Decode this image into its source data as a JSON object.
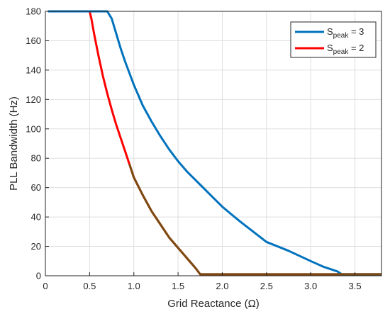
{
  "chart_data": {
    "type": "line",
    "title": "",
    "xlabel": "Grid Reactance (Ω)",
    "ylabel": "PLL Bandwidth (Hz)",
    "xlim": [
      0,
      3.8
    ],
    "ylim": [
      0,
      180
    ],
    "xticks": [
      0,
      0.5,
      1,
      1.5,
      2,
      2.5,
      3,
      3.5
    ],
    "xtick_labels": [
      "0",
      "0.5",
      "1.0",
      "1.5",
      "2.0",
      "2.5",
      "3.0",
      "3.5"
    ],
    "yticks": [
      0,
      20,
      40,
      60,
      80,
      100,
      120,
      140,
      160,
      180
    ],
    "ytick_labels": [
      "0",
      "20",
      "40",
      "60",
      "80",
      "100",
      "120",
      "140",
      "160",
      "180"
    ],
    "grid": true,
    "legend_position": "top-right",
    "series": [
      {
        "name": "S",
        "subscript": "peak",
        "suffix": " = 3",
        "color": "#0072bd",
        "x": [
          0.03,
          0.7,
          0.75,
          0.8,
          0.85,
          0.9,
          0.95,
          1.0,
          1.05,
          1.1,
          1.2,
          1.3,
          1.4,
          1.5,
          1.6,
          1.75,
          1.9,
          2.0,
          2.1,
          2.2,
          2.35,
          2.5,
          2.75,
          3.0,
          3.15,
          3.3,
          3.35,
          3.4,
          3.8
        ],
        "values": [
          180,
          180,
          175,
          165,
          155,
          146,
          138,
          130,
          123,
          116,
          105,
          95,
          86,
          78,
          71,
          62,
          53,
          47,
          42,
          37,
          30,
          23,
          17,
          10,
          6,
          3,
          1,
          1,
          1
        ]
      },
      {
        "name": "S",
        "subscript": "peak",
        "suffix": " = 2",
        "color": "#ff0000",
        "x": [
          0.03,
          0.5,
          0.52,
          0.55,
          0.6,
          0.65,
          0.7,
          0.75,
          0.8,
          0.85,
          0.9,
          0.95,
          1.0,
          1.1,
          1.2,
          1.3,
          1.4,
          1.5,
          1.6,
          1.7,
          1.75,
          1.8,
          3.8
        ],
        "values": [
          180,
          180,
          175,
          165,
          150,
          136,
          124,
          113,
          103,
          94,
          85,
          76,
          67,
          55,
          44,
          35,
          26,
          19,
          12,
          5,
          1,
          1,
          1
        ]
      }
    ],
    "overlay": {
      "color": "#7a4a10",
      "x": [
        0.95,
        1.0,
        1.1,
        1.2,
        1.3,
        1.4,
        1.5,
        1.6,
        1.7,
        1.75,
        1.8,
        3.8
      ],
      "values": [
        76,
        67,
        55,
        44,
        35,
        26,
        19,
        12,
        5,
        1,
        1,
        1
      ]
    }
  }
}
